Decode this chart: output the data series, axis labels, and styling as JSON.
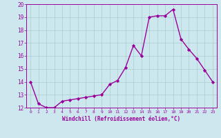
{
  "x": [
    0,
    1,
    2,
    3,
    4,
    5,
    6,
    7,
    8,
    9,
    10,
    11,
    12,
    13,
    14,
    15,
    16,
    17,
    18,
    19,
    20,
    21,
    22,
    23
  ],
  "y": [
    14.0,
    12.3,
    12.0,
    12.0,
    12.5,
    12.6,
    12.7,
    12.8,
    12.9,
    13.0,
    13.8,
    14.1,
    15.1,
    16.8,
    16.0,
    19.0,
    19.1,
    19.1,
    19.6,
    17.3,
    16.5,
    15.8,
    14.9,
    14.0
  ],
  "line_color": "#990099",
  "marker": "D",
  "marker_size": 2.2,
  "bg_color": "#cce8ee",
  "grid_color": "#aacccc",
  "xlabel": "Windchill (Refroidissement éolien,°C)",
  "xlabel_color": "#990099",
  "xtick_labels": [
    "0",
    "1",
    "2",
    "3",
    "4",
    "5",
    "6",
    "7",
    "8",
    "9",
    "10",
    "11",
    "12",
    "13",
    "14",
    "15",
    "16",
    "17",
    "18",
    "19",
    "20",
    "21",
    "22",
    "23"
  ],
  "ylim": [
    12,
    20
  ],
  "xlim": [
    -0.5,
    23.5
  ],
  "ytick_vals": [
    12,
    13,
    14,
    15,
    16,
    17,
    18,
    19,
    20
  ],
  "tick_color": "#990099",
  "line_width": 1.0
}
